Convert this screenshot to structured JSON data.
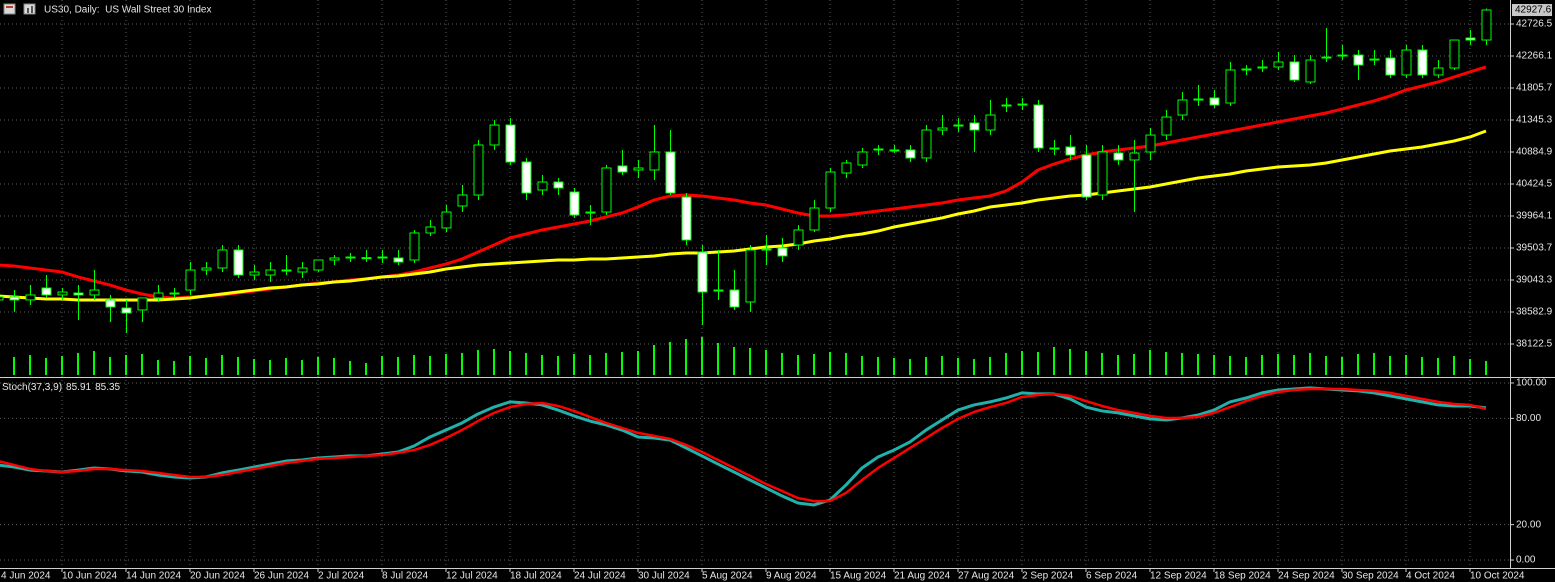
{
  "chart_data": [
    {
      "type": "candlestick",
      "title": "US30, Daily:  US Wall Street 30 Index",
      "categories": [
        "4 Jun 2024",
        null,
        null,
        null,
        "10 Jun 2024",
        null,
        null,
        null,
        "14 Jun 2024",
        null,
        null,
        null,
        "20 Jun 2024",
        null,
        null,
        null,
        "26 Jun 2024",
        null,
        null,
        null,
        "2 Jul 2024",
        null,
        null,
        null,
        "8 Jul 2024",
        null,
        null,
        null,
        "12 Jul 2024",
        null,
        null,
        null,
        "18 Jul 2024",
        null,
        null,
        null,
        "24 Jul 2024",
        null,
        null,
        null,
        "30 Jul 2024",
        null,
        null,
        null,
        "5 Aug 2024",
        null,
        null,
        null,
        "9 Aug 2024",
        null,
        null,
        null,
        "15 Aug 2024",
        null,
        null,
        null,
        "21 Aug 2024",
        null,
        null,
        null,
        "27 Aug 2024",
        null,
        null,
        null,
        "2 Sep 2024",
        null,
        null,
        null,
        "6 Sep 2024",
        null,
        null,
        null,
        "12 Sep 2024",
        null,
        null,
        null,
        "18 Sep 2024",
        null,
        null,
        null,
        "24 Sep 2024",
        null,
        null,
        null,
        "30 Sep 2024",
        null,
        null,
        null,
        "4 Oct 2024",
        null,
        null,
        null,
        "10 Oct 2024",
        null
      ],
      "open": [
        38756,
        38800,
        38756,
        38928,
        38828,
        38856,
        38828,
        38756,
        38640,
        38612,
        38785,
        38842,
        38899,
        39187,
        39216,
        39475,
        39115,
        39115,
        39173,
        39158,
        39187,
        39331,
        39360,
        39360,
        39374,
        39360,
        39331,
        39720,
        39792,
        40108,
        40266,
        40986,
        41273,
        40741,
        40338,
        40453,
        40309,
        40021,
        40021,
        40684,
        40626,
        40626,
        40885,
        40237,
        39446,
        38899,
        38899,
        38727,
        39475,
        39504,
        39547,
        39763,
        40079,
        40583,
        40698,
        40914,
        40914,
        40914,
        40799,
        41201,
        41273,
        41302,
        41201,
        41547,
        41575,
        41561,
        40942,
        40957,
        40842,
        40266,
        40870,
        40770,
        40885,
        41129,
        41417,
        41633,
        41662,
        41590,
        42065,
        42093,
        42108,
        42180,
        41892,
        42237,
        42280,
        42280,
        42208,
        42237,
        41993,
        42352,
        41993,
        42093,
        42525,
        42496
      ],
      "high": [
        38885,
        38899,
        38971,
        39115,
        38928,
        38971,
        39187,
        38828,
        38756,
        38785,
        38971,
        38928,
        39302,
        39302,
        39547,
        39547,
        39259,
        39302,
        39403,
        39302,
        39331,
        39403,
        39432,
        39475,
        39475,
        39475,
        39763,
        39907,
        40122,
        40410,
        41058,
        41345,
        41374,
        40798,
        40554,
        40511,
        40367,
        40122,
        40698,
        40914,
        40770,
        41273,
        41201,
        40295,
        39547,
        39475,
        39187,
        39547,
        39691,
        39648,
        39835,
        40194,
        40655,
        40770,
        40942,
        40986,
        40986,
        40986,
        41273,
        41417,
        41374,
        41417,
        41633,
        41662,
        41662,
        41633,
        41058,
        41129,
        40986,
        40986,
        40986,
        41058,
        41230,
        41489,
        41748,
        41849,
        41777,
        42180,
        42136,
        42208,
        42323,
        42280,
        42280,
        42669,
        42424,
        42352,
        42352,
        42352,
        42424,
        42424,
        42208,
        42496,
        42640,
        42950
      ],
      "low": [
        38612,
        38584,
        38684,
        38785,
        38756,
        38468,
        38756,
        38439,
        38281,
        38439,
        38727,
        38785,
        38828,
        39115,
        39158,
        39072,
        39043,
        39014,
        39115,
        39072,
        39158,
        39259,
        39302,
        39302,
        39288,
        39259,
        39288,
        39677,
        39734,
        40021,
        40194,
        40914,
        40698,
        40194,
        40266,
        40266,
        39936,
        39835,
        39978,
        40554,
        40511,
        40482,
        40266,
        39547,
        38396,
        38756,
        38612,
        38584,
        39259,
        39302,
        39475,
        39734,
        40021,
        40511,
        40655,
        40842,
        40870,
        40741,
        40741,
        41129,
        41172,
        40885,
        41129,
        41460,
        41489,
        40885,
        40842,
        40770,
        40194,
        40194,
        40698,
        40021,
        40770,
        41058,
        41345,
        41547,
        41518,
        41547,
        41993,
        42036,
        42065,
        41892,
        41863,
        42180,
        42208,
        41921,
        42136,
        41950,
        41950,
        41950,
        41950,
        42065,
        42424,
        42424
      ],
      "close": [
        38800,
        38756,
        38828,
        38828,
        38870,
        38828,
        38899,
        38655,
        38568,
        38785,
        38856,
        38856,
        39187,
        39216,
        39475,
        39115,
        39158,
        39187,
        39187,
        39216,
        39331,
        39360,
        39374,
        39365,
        39360,
        39302,
        39720,
        39806,
        40021,
        40266,
        40986,
        41273,
        40741,
        40295,
        40453,
        40367,
        39978,
        40007,
        40655,
        40597,
        40655,
        40885,
        40295,
        39619,
        38871,
        38885,
        38655,
        39475,
        39489,
        39389,
        39763,
        40079,
        40597,
        40727,
        40885,
        40928,
        40900,
        40799,
        41201,
        41230,
        41259,
        41201,
        41417,
        41561,
        41561,
        40942,
        40928,
        40842,
        40237,
        40885,
        40770,
        40870,
        41129,
        41388,
        41633,
        41647,
        41561,
        42065,
        42079,
        42108,
        42180,
        41921,
        42208,
        42251,
        42266,
        42136,
        42222,
        41993,
        42352,
        41993,
        42093,
        42496,
        42496,
        42927.6
      ],
      "up_color": "#000000",
      "down_color": "#ffffff",
      "wick_color": "#00ff00",
      "overlays": [
        {
          "color": "#ff0000",
          "values": [
            39259,
            39245,
            39216,
            39187,
            39158,
            39087,
            39029,
            38971,
            38899,
            38842,
            38799,
            38785,
            38799,
            38813,
            38828,
            38856,
            38885,
            38914,
            38943,
            38971,
            39000,
            39014,
            39043,
            39058,
            39087,
            39115,
            39158,
            39216,
            39273,
            39345,
            39446,
            39547,
            39648,
            39705,
            39763,
            39806,
            39849,
            39892,
            39950,
            40007,
            40093,
            40194,
            40252,
            40266,
            40252,
            40223,
            40194,
            40151,
            40122,
            40065,
            40007,
            39964,
            39964,
            39978,
            40007,
            40036,
            40065,
            40093,
            40122,
            40151,
            40194,
            40223,
            40252,
            40324,
            40453,
            40626,
            40712,
            40784,
            40842,
            40885,
            40914,
            40942,
            40971,
            41014,
            41058,
            41101,
            41144,
            41187,
            41230,
            41273,
            41316,
            41360,
            41403,
            41446,
            41503,
            41561,
            41619,
            41690,
            41777,
            41834,
            41892,
            41964,
            42036,
            42108
          ]
        },
        {
          "color": "#ffff00",
          "values": [
            38813,
            38799,
            38785,
            38770,
            38770,
            38756,
            38756,
            38756,
            38756,
            38756,
            38756,
            38770,
            38785,
            38813,
            38842,
            38871,
            38899,
            38928,
            38943,
            38971,
            38986,
            39014,
            39029,
            39058,
            39087,
            39101,
            39130,
            39158,
            39202,
            39230,
            39259,
            39273,
            39288,
            39302,
            39317,
            39331,
            39331,
            39345,
            39345,
            39360,
            39374,
            39389,
            39417,
            39432,
            39432,
            39446,
            39460,
            39489,
            39518,
            39532,
            39561,
            39604,
            39633,
            39677,
            39705,
            39748,
            39806,
            39849,
            39892,
            39936,
            39993,
            40036,
            40093,
            40122,
            40151,
            40194,
            40223,
            40252,
            40266,
            40295,
            40324,
            40353,
            40381,
            40424,
            40468,
            40511,
            40540,
            40568,
            40612,
            40640,
            40669,
            40684,
            40698,
            40727,
            40770,
            40813,
            40856,
            40899,
            40928,
            40957,
            41000,
            41043,
            41101,
            41187
          ]
        }
      ],
      "volume": {
        "color": "#00ff00",
        "ylim": [
          0,
          40
        ],
        "values": [
          16,
          18,
          20,
          17,
          19,
          22,
          24,
          18,
          20,
          21,
          15,
          14,
          19,
          17,
          20,
          18,
          16,
          15,
          17,
          15,
          18,
          17,
          14,
          12,
          19,
          18,
          20,
          19,
          21,
          22,
          25,
          26,
          24,
          22,
          20,
          19,
          21,
          20,
          22,
          23,
          24,
          30,
          33,
          36,
          38,
          32,
          28,
          27,
          25,
          22,
          20,
          21,
          23,
          22,
          19,
          18,
          17,
          16,
          18,
          19,
          17,
          16,
          18,
          22,
          24,
          23,
          28,
          26,
          24,
          22,
          20,
          21,
          25,
          23,
          22,
          21,
          20,
          19,
          18,
          20,
          21,
          20,
          22,
          19,
          18,
          21,
          22,
          19,
          20,
          18,
          17,
          19,
          16,
          14
        ]
      },
      "ylim": [
        37647.7,
        43071.8
      ],
      "yticks": [
        42726.5,
        42266.1,
        41805.7,
        41345.3,
        40884.9,
        40424.5,
        39964.1,
        39503.7,
        39043.3,
        38582.9,
        38122.5
      ],
      "grid": true
    },
    {
      "type": "line",
      "title": "Stoch(37,3,9)",
      "series": [
        {
          "color": "#20b2aa",
          "values": [
            53.7,
            52.5,
            50.8,
            50.3,
            49.7,
            50.8,
            52.0,
            51.4,
            50.3,
            49.7,
            48.0,
            46.9,
            46.3,
            46.9,
            49.2,
            50.8,
            52.5,
            54.2,
            55.9,
            56.5,
            57.6,
            58.2,
            58.8,
            58.8,
            59.9,
            61.0,
            64.4,
            69.5,
            73.4,
            77.4,
            82.5,
            86.4,
            89.3,
            88.7,
            87.6,
            84.7,
            81.4,
            78.5,
            76.3,
            73.4,
            69.5,
            68.9,
            67.8,
            63.3,
            58.8,
            54.2,
            49.7,
            45.2,
            40.7,
            36.2,
            32.2,
            31.1,
            33.9,
            42.4,
            52.0,
            58.2,
            62.1,
            66.7,
            73.4,
            79.1,
            84.7,
            87.6,
            89.3,
            91.5,
            94.4,
            93.8,
            93.8,
            91.0,
            86.4,
            84.2,
            83.1,
            81.4,
            79.7,
            79.1,
            80.2,
            81.9,
            84.7,
            89.3,
            91.5,
            94.4,
            96.0,
            96.6,
            97.2,
            96.6,
            96.0,
            95.5,
            94.4,
            92.7,
            91.0,
            89.3,
            87.6,
            87.0,
            87.0,
            85.91
          ]
        },
        {
          "color": "#ff0000",
          "values": [
            55.9,
            53.7,
            51.4,
            50.3,
            49.7,
            50.3,
            51.4,
            51.4,
            50.8,
            50.3,
            49.2,
            48.0,
            46.9,
            46.9,
            48.0,
            49.7,
            51.4,
            53.1,
            54.8,
            55.9,
            57.1,
            57.6,
            58.2,
            58.8,
            59.3,
            60.5,
            62.1,
            65.0,
            68.9,
            73.4,
            78.5,
            83.1,
            86.4,
            88.1,
            88.7,
            87.0,
            84.2,
            80.8,
            77.4,
            74.6,
            71.8,
            70.1,
            68.4,
            65.0,
            61.0,
            56.5,
            52.0,
            47.5,
            42.9,
            39.0,
            35.0,
            33.3,
            33.3,
            37.9,
            45.2,
            52.0,
            57.6,
            63.3,
            68.9,
            74.6,
            79.7,
            83.6,
            86.4,
            88.7,
            92.1,
            93.2,
            93.8,
            92.7,
            89.8,
            87.0,
            84.7,
            83.1,
            81.4,
            80.2,
            80.2,
            80.8,
            83.1,
            86.4,
            89.8,
            92.7,
            94.9,
            96.0,
            96.6,
            96.6,
            96.6,
            96.0,
            95.5,
            94.4,
            92.7,
            91.0,
            89.3,
            88.1,
            87.6,
            85.35
          ]
        }
      ],
      "ylim": [
        -4.5,
        102.8
      ],
      "yticks": [
        {
          "value": 100,
          "label": "100.00"
        },
        {
          "value": 80,
          "label": "80.00"
        },
        {
          "value": 20,
          "label": "20.00"
        },
        {
          "value": 0,
          "label": "0.00"
        }
      ],
      "grid": true
    }
  ]
}
